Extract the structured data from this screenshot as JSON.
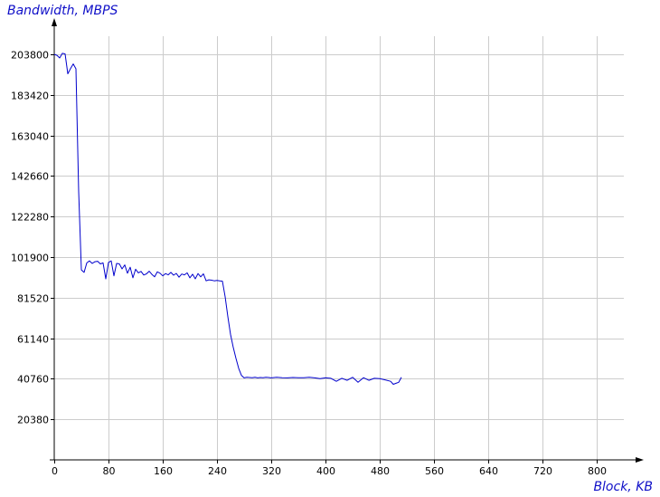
{
  "chart_data": {
    "type": "line",
    "ylabel": "Bandwidth, MBPS",
    "xlabel": "Block, KB",
    "xlim": [
      0,
      840
    ],
    "ylim": [
      0,
      210000
    ],
    "x_ticks": [
      0,
      80,
      160,
      240,
      320,
      400,
      480,
      560,
      640,
      720,
      800
    ],
    "y_ticks": [
      20380,
      40760,
      61140,
      81520,
      101900,
      122280,
      142660,
      163040,
      183420,
      203800
    ],
    "grid": true,
    "legend": "none",
    "line_color": "#0000cc",
    "axis_title_color": "#1010c8",
    "series": [
      {
        "x": [
          0,
          4,
          8,
          12,
          16,
          20,
          24,
          28,
          32,
          36,
          40,
          44,
          48,
          52,
          56,
          60,
          64,
          68,
          72,
          76,
          80,
          84,
          88,
          92,
          96,
          100,
          104,
          108,
          112,
          116,
          120,
          124,
          128,
          132,
          136,
          140,
          144,
          148,
          152,
          156,
          160,
          164,
          168,
          172,
          176,
          180,
          184,
          188,
          192,
          196,
          200,
          204,
          208,
          212,
          216,
          220,
          224,
          228,
          232,
          236,
          240,
          244,
          248,
          252,
          256,
          260,
          264,
          268,
          272,
          276,
          280,
          284,
          288,
          292,
          296,
          300,
          304,
          308,
          312,
          316,
          320,
          328,
          336,
          344,
          352,
          360,
          368,
          376,
          384,
          392,
          400,
          408,
          416,
          424,
          432,
          440,
          448,
          456,
          464,
          472,
          480,
          488,
          496,
          500,
          504,
          508,
          512
        ],
        "y": [
          203800,
          203300,
          202000,
          204300,
          204000,
          194000,
          196600,
          199000,
          196500,
          135000,
          95500,
          94200,
          99000,
          100000,
          98700,
          99600,
          99800,
          98500,
          99000,
          91000,
          99200,
          100000,
          92500,
          98700,
          98500,
          96000,
          98000,
          93800,
          96800,
          91500,
          95800,
          94000,
          94700,
          92900,
          93500,
          94800,
          93200,
          92000,
          94500,
          93800,
          92500,
          93600,
          93000,
          94200,
          92800,
          93700,
          91800,
          93400,
          93000,
          94000,
          91500,
          93300,
          91000,
          93600,
          92000,
          93500,
          90000,
          90500,
          90300,
          90000,
          90200,
          90000,
          89800,
          82000,
          72000,
          63000,
          56500,
          51000,
          46000,
          42500,
          41200,
          41500,
          41400,
          41300,
          41500,
          41200,
          41400,
          41300,
          41500,
          41400,
          41200,
          41500,
          41300,
          41200,
          41400,
          41300,
          41300,
          41500,
          41200,
          40800,
          41200,
          41000,
          39500,
          41000,
          40000,
          41500,
          39000,
          41300,
          40000,
          41000,
          40800,
          40200,
          39500,
          38000,
          38500,
          39000,
          41500
        ]
      }
    ]
  }
}
